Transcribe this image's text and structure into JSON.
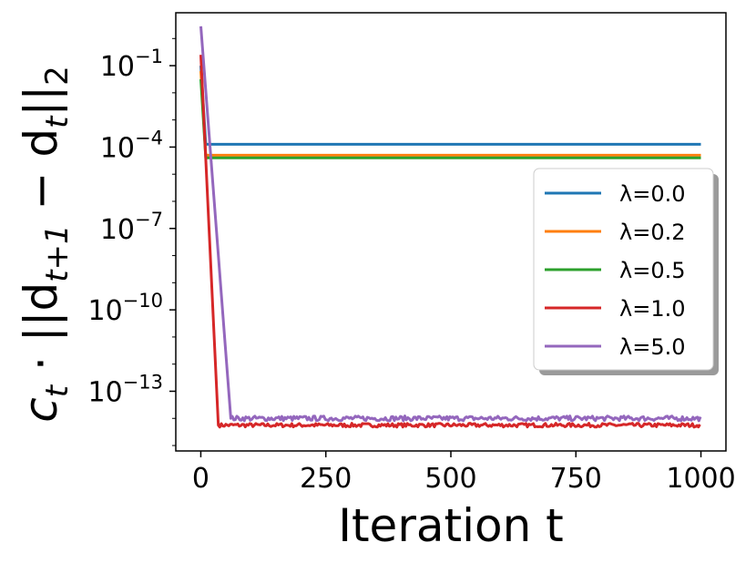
{
  "chart_data": {
    "type": "line",
    "xlabel": "Iteration t",
    "ylabel": {
      "prefix": "c",
      "prefix_sub": "t",
      "middle": " · ||d",
      "sub1": "t+1",
      "minus": " − d",
      "sub2": "t",
      "suffix": "||",
      "suffix_sub": "2"
    },
    "yscale": "log",
    "xlim": [
      -50,
      1050
    ],
    "ylim_exp": [
      -15.2,
      0.95
    ],
    "xticks": [
      {
        "value": 0,
        "label": "0"
      },
      {
        "value": 250,
        "label": "250"
      },
      {
        "value": 500,
        "label": "500"
      },
      {
        "value": 750,
        "label": "750"
      },
      {
        "value": 1000,
        "label": "1000"
      }
    ],
    "yticks": [
      {
        "exp": -1,
        "base": "10",
        "sup": "−1"
      },
      {
        "exp": -4,
        "base": "10",
        "sup": "−4"
      },
      {
        "exp": -7,
        "base": "10",
        "sup": "−7"
      },
      {
        "exp": -10,
        "base": "10",
        "sup": "−10"
      },
      {
        "exp": -13,
        "base": "10",
        "sup": "−13"
      }
    ],
    "grid": false,
    "legend_position": "center-right",
    "series": [
      {
        "name": "λ=0.0",
        "color": "#1f77b4",
        "x": [
          0,
          10,
          1000
        ],
        "y_exp": [
          -1.0,
          -3.9,
          -3.9
        ],
        "noise": 0
      },
      {
        "name": "λ=0.2",
        "color": "#ff7f0e",
        "x": [
          0,
          10,
          1000
        ],
        "y_exp": [
          -1.2,
          -4.3,
          -4.3
        ],
        "noise": 0
      },
      {
        "name": "λ=0.5",
        "color": "#2ca02c",
        "x": [
          0,
          10,
          1000
        ],
        "y_exp": [
          -1.5,
          -4.4,
          -4.4
        ],
        "noise": 0
      },
      {
        "name": "λ=1.0",
        "color": "#d62728",
        "x": [
          0,
          35,
          1000
        ],
        "y_exp": [
          -0.6,
          -14.25,
          -14.25
        ],
        "noise": 0.07
      },
      {
        "name": "λ=5.0",
        "color": "#9467bd",
        "x": [
          0,
          60,
          1000
        ],
        "y_exp": [
          0.45,
          -14.0,
          -14.0
        ],
        "noise": 0.09
      }
    ]
  }
}
